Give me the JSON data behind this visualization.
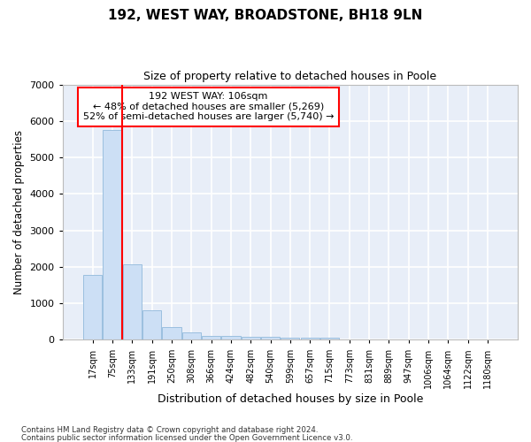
{
  "title1": "192, WEST WAY, BROADSTONE, BH18 9LN",
  "title2": "Size of property relative to detached houses in Poole",
  "xlabel": "Distribution of detached houses by size in Poole",
  "ylabel": "Number of detached properties",
  "bar_color": "#ccdff5",
  "bar_edge_color": "#9bbfdf",
  "bg_color": "#e8eef8",
  "grid_color": "#ffffff",
  "categories": [
    "17sqm",
    "75sqm",
    "133sqm",
    "191sqm",
    "250sqm",
    "308sqm",
    "366sqm",
    "424sqm",
    "482sqm",
    "540sqm",
    "599sqm",
    "657sqm",
    "715sqm",
    "773sqm",
    "831sqm",
    "889sqm",
    "947sqm",
    "1006sqm",
    "1064sqm",
    "1122sqm",
    "1180sqm"
  ],
  "values": [
    1780,
    5750,
    2060,
    800,
    360,
    210,
    115,
    100,
    80,
    75,
    65,
    55,
    65,
    0,
    0,
    0,
    0,
    0,
    0,
    0,
    0
  ],
  "property_label": "192 WEST WAY: 106sqm",
  "pct_smaller": 48,
  "n_smaller": 5269,
  "pct_larger": 52,
  "n_larger": 5740,
  "vline_x": 1.5,
  "ylim": [
    0,
    7000
  ],
  "yticks": [
    0,
    1000,
    2000,
    3000,
    4000,
    5000,
    6000,
    7000
  ],
  "footnote1": "Contains HM Land Registry data © Crown copyright and database right 2024.",
  "footnote2": "Contains public sector information licensed under the Open Government Licence v3.0."
}
